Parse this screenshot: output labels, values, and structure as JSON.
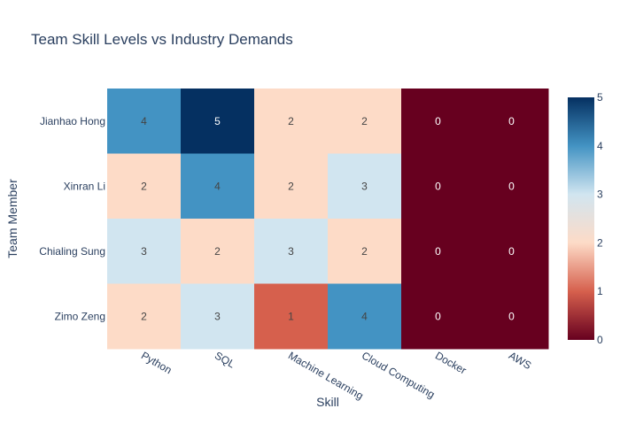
{
  "chart_data": {
    "type": "heatmap",
    "title": "Team Skill Levels vs Industry Demands",
    "xlabel": "Skill",
    "ylabel": "Team Member",
    "x": [
      "Python",
      "SQL",
      "Machine Learning",
      "Cloud Computing",
      "Docker",
      "AWS"
    ],
    "y": [
      "Jianhao Hong",
      "Xinran Li",
      "Chialing Sung",
      "Zimo Zeng"
    ],
    "z": [
      [
        4,
        5,
        2,
        2,
        0,
        0
      ],
      [
        2,
        4,
        2,
        3,
        0,
        0
      ],
      [
        3,
        2,
        3,
        2,
        0,
        0
      ],
      [
        2,
        3,
        1,
        4,
        0,
        0
      ]
    ],
    "zlim": [
      0,
      5
    ],
    "colorscale": "RdBu",
    "colorbar": {
      "ticks": [
        0,
        1,
        2,
        3,
        4,
        5
      ]
    },
    "colors": {
      "0": "#67001f",
      "1": "#d6604d",
      "2": "#fddbc7",
      "3": "#d1e5f0",
      "4": "#4393c3",
      "5": "#053061"
    }
  }
}
